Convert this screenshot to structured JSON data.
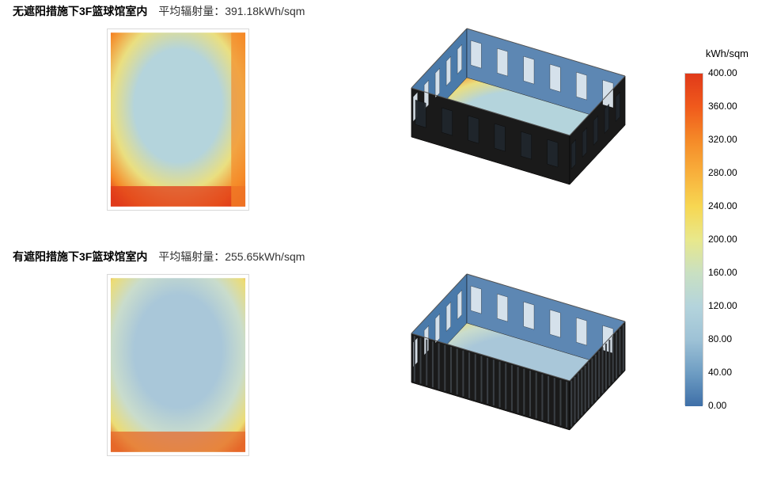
{
  "legend": {
    "unit": "kWh/sqm",
    "max": 400.0,
    "min": 0.0,
    "ticks": [
      "400.00",
      "360.00",
      "320.00",
      "280.00",
      "240.00",
      "200.00",
      "160.00",
      "120.00",
      "80.00",
      "40.00",
      "0.00"
    ],
    "colors": [
      "#e03a1a",
      "#f05a1c",
      "#f58a28",
      "#f8b03c",
      "#f7d752",
      "#e8e88c",
      "#c9e0c2",
      "#b4d4dc",
      "#9ec2d6",
      "#6e9dc3",
      "#3e6fa8"
    ]
  },
  "rows": [
    {
      "title": "无遮阳措施下3F篮球馆室内",
      "avg_label": "平均辐射量：",
      "avg_value": "391.18kWh/sqm",
      "heatmap2d": {
        "center_color": "#b4d4dc",
        "mid_color": "#eadf80",
        "edge_color": "#f58a28",
        "hot_color": "#e03a1a",
        "hot_bottom": true,
        "hot_right": true
      },
      "model3d": {
        "wall_color": "#1a1a1a",
        "wall_inner": "#4173a6",
        "floor_center": "#b4d4dc",
        "floor_mid": "#eadf80",
        "floor_edge": "#f58a28",
        "floor_hot": "#e03a1a",
        "shade_panels": false
      }
    },
    {
      "title": "有遮阳措施下3F篮球馆室内",
      "avg_label": "平均辐射量：",
      "avg_value": "255.65kWh/sqm",
      "heatmap2d": {
        "center_color": "#a9c7d9",
        "mid_color": "#c9dccc",
        "edge_color": "#ecdc74",
        "hot_color": "#e6682a",
        "hot_bottom": true,
        "hot_right": false
      },
      "model3d": {
        "wall_color": "#1a1a1a",
        "wall_inner": "#4173a6",
        "floor_center": "#a9c7d9",
        "floor_mid": "#c9dccc",
        "floor_edge": "#ecdc74",
        "floor_hot": "#e6682a",
        "shade_panels": true
      }
    }
  ]
}
